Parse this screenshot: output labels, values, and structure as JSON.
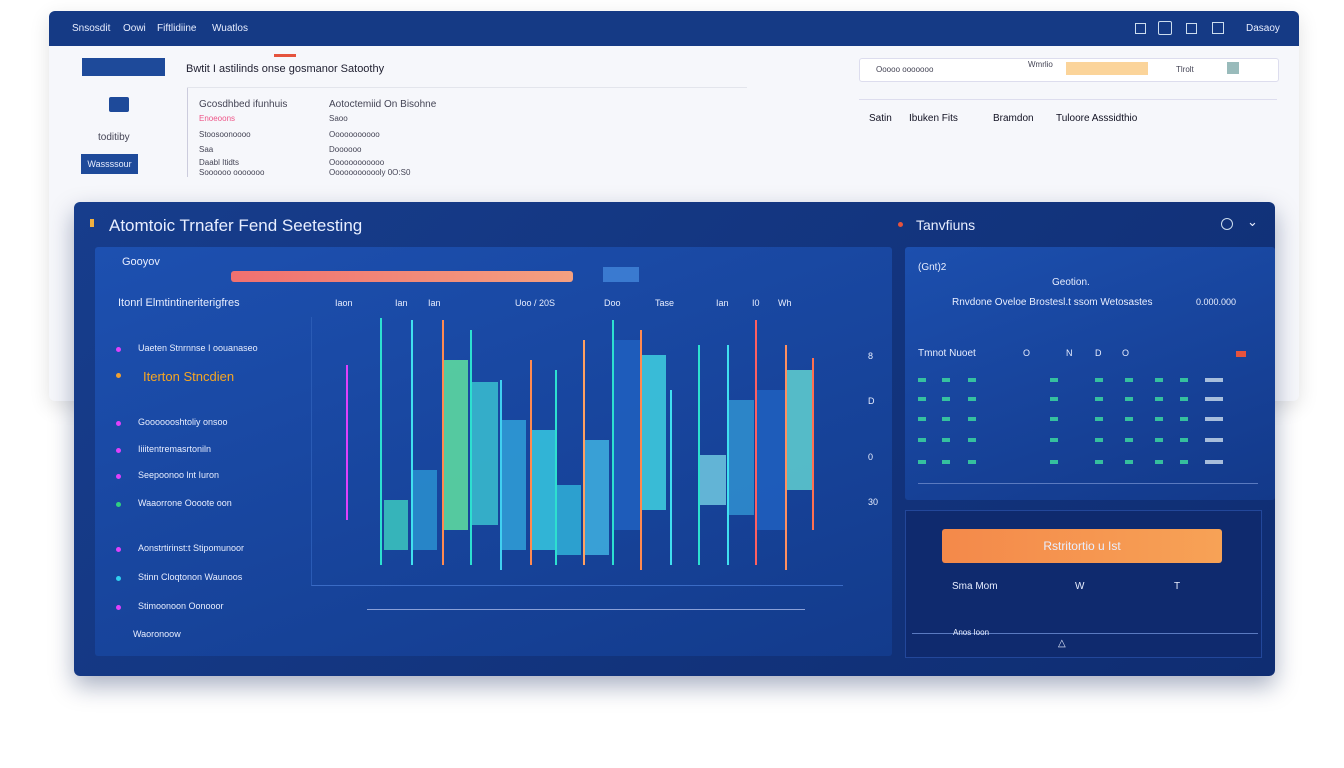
{
  "nav": {
    "links": [
      "Snsosdit",
      "Oowi",
      "Fiftlidiine",
      "Wuatlos"
    ],
    "user": "Dasaoy"
  },
  "header": {
    "title": "Bwtit I astilinds onse gosmanor Satoothy",
    "side_label": "toditiby",
    "button": "Wassssour",
    "col1": [
      "Gcosdhbed ifunhuis",
      "Enoeoons",
      "Stoosoonoooo",
      "Saa",
      "Daabl Itidts",
      "Soooooo ooooooo"
    ],
    "col2": [
      "Aotoctemiid On Bisohne",
      "Saoo",
      "Ooooooooooo",
      "Doooooo",
      "Oooooooooooo",
      "Oooooooooooly 0O:S0"
    ]
  },
  "filters": {
    "items": [
      "Ooooo ooooooo",
      "Wmrlio",
      "Tlrolt"
    ],
    "columns": [
      "Satin",
      "Ibuken Fits",
      "Bramdon",
      "Tuloore Asssidthio"
    ]
  },
  "panel": {
    "title": "Atomtoic Trnafer Fend Seetesting",
    "side_title": "Tanvfiuns"
  },
  "sidebar": {
    "heading": "Gooyov",
    "subheading": "Itonrl Elmtintineriterigfres",
    "items": [
      "Uaeten Stnrnnse I oouanaseo",
      "Iterton Stncdien",
      "Gooooooshtoliy onsoo",
      "Iiiitentremasrtoniln",
      "Seepoonoo lnt Iuron",
      "Waaorrone Oooote oon",
      "Aonstrtirinst:t Stipomunoor",
      "Stinn Cloqtonon Waunoos",
      "Stimoonoon Oonooor"
    ],
    "footer": "Waoronoow"
  },
  "chart": {
    "labels": [
      "Iaon",
      "Ian",
      "Ian",
      "Uoo / 20S",
      "Doo",
      "Tase",
      "Ian",
      "I0",
      "Wh"
    ],
    "axis": [
      "8",
      "D",
      "0",
      "30"
    ]
  },
  "summary": {
    "badge": "(Gnt)2",
    "heading": "Geotion.",
    "subtitle": "Rnvdone Oveloe Brostesl.t ssom Wetosastes",
    "amount": "0.000.000",
    "table_label": "Tmnot Nuoet",
    "table_cols": [
      "O",
      "N",
      "D",
      "O"
    ]
  },
  "action": {
    "button": "Rstritortio u Ist",
    "labels": [
      "Sma Mom",
      "W",
      "T"
    ],
    "footer": "Anos Ioon"
  }
}
